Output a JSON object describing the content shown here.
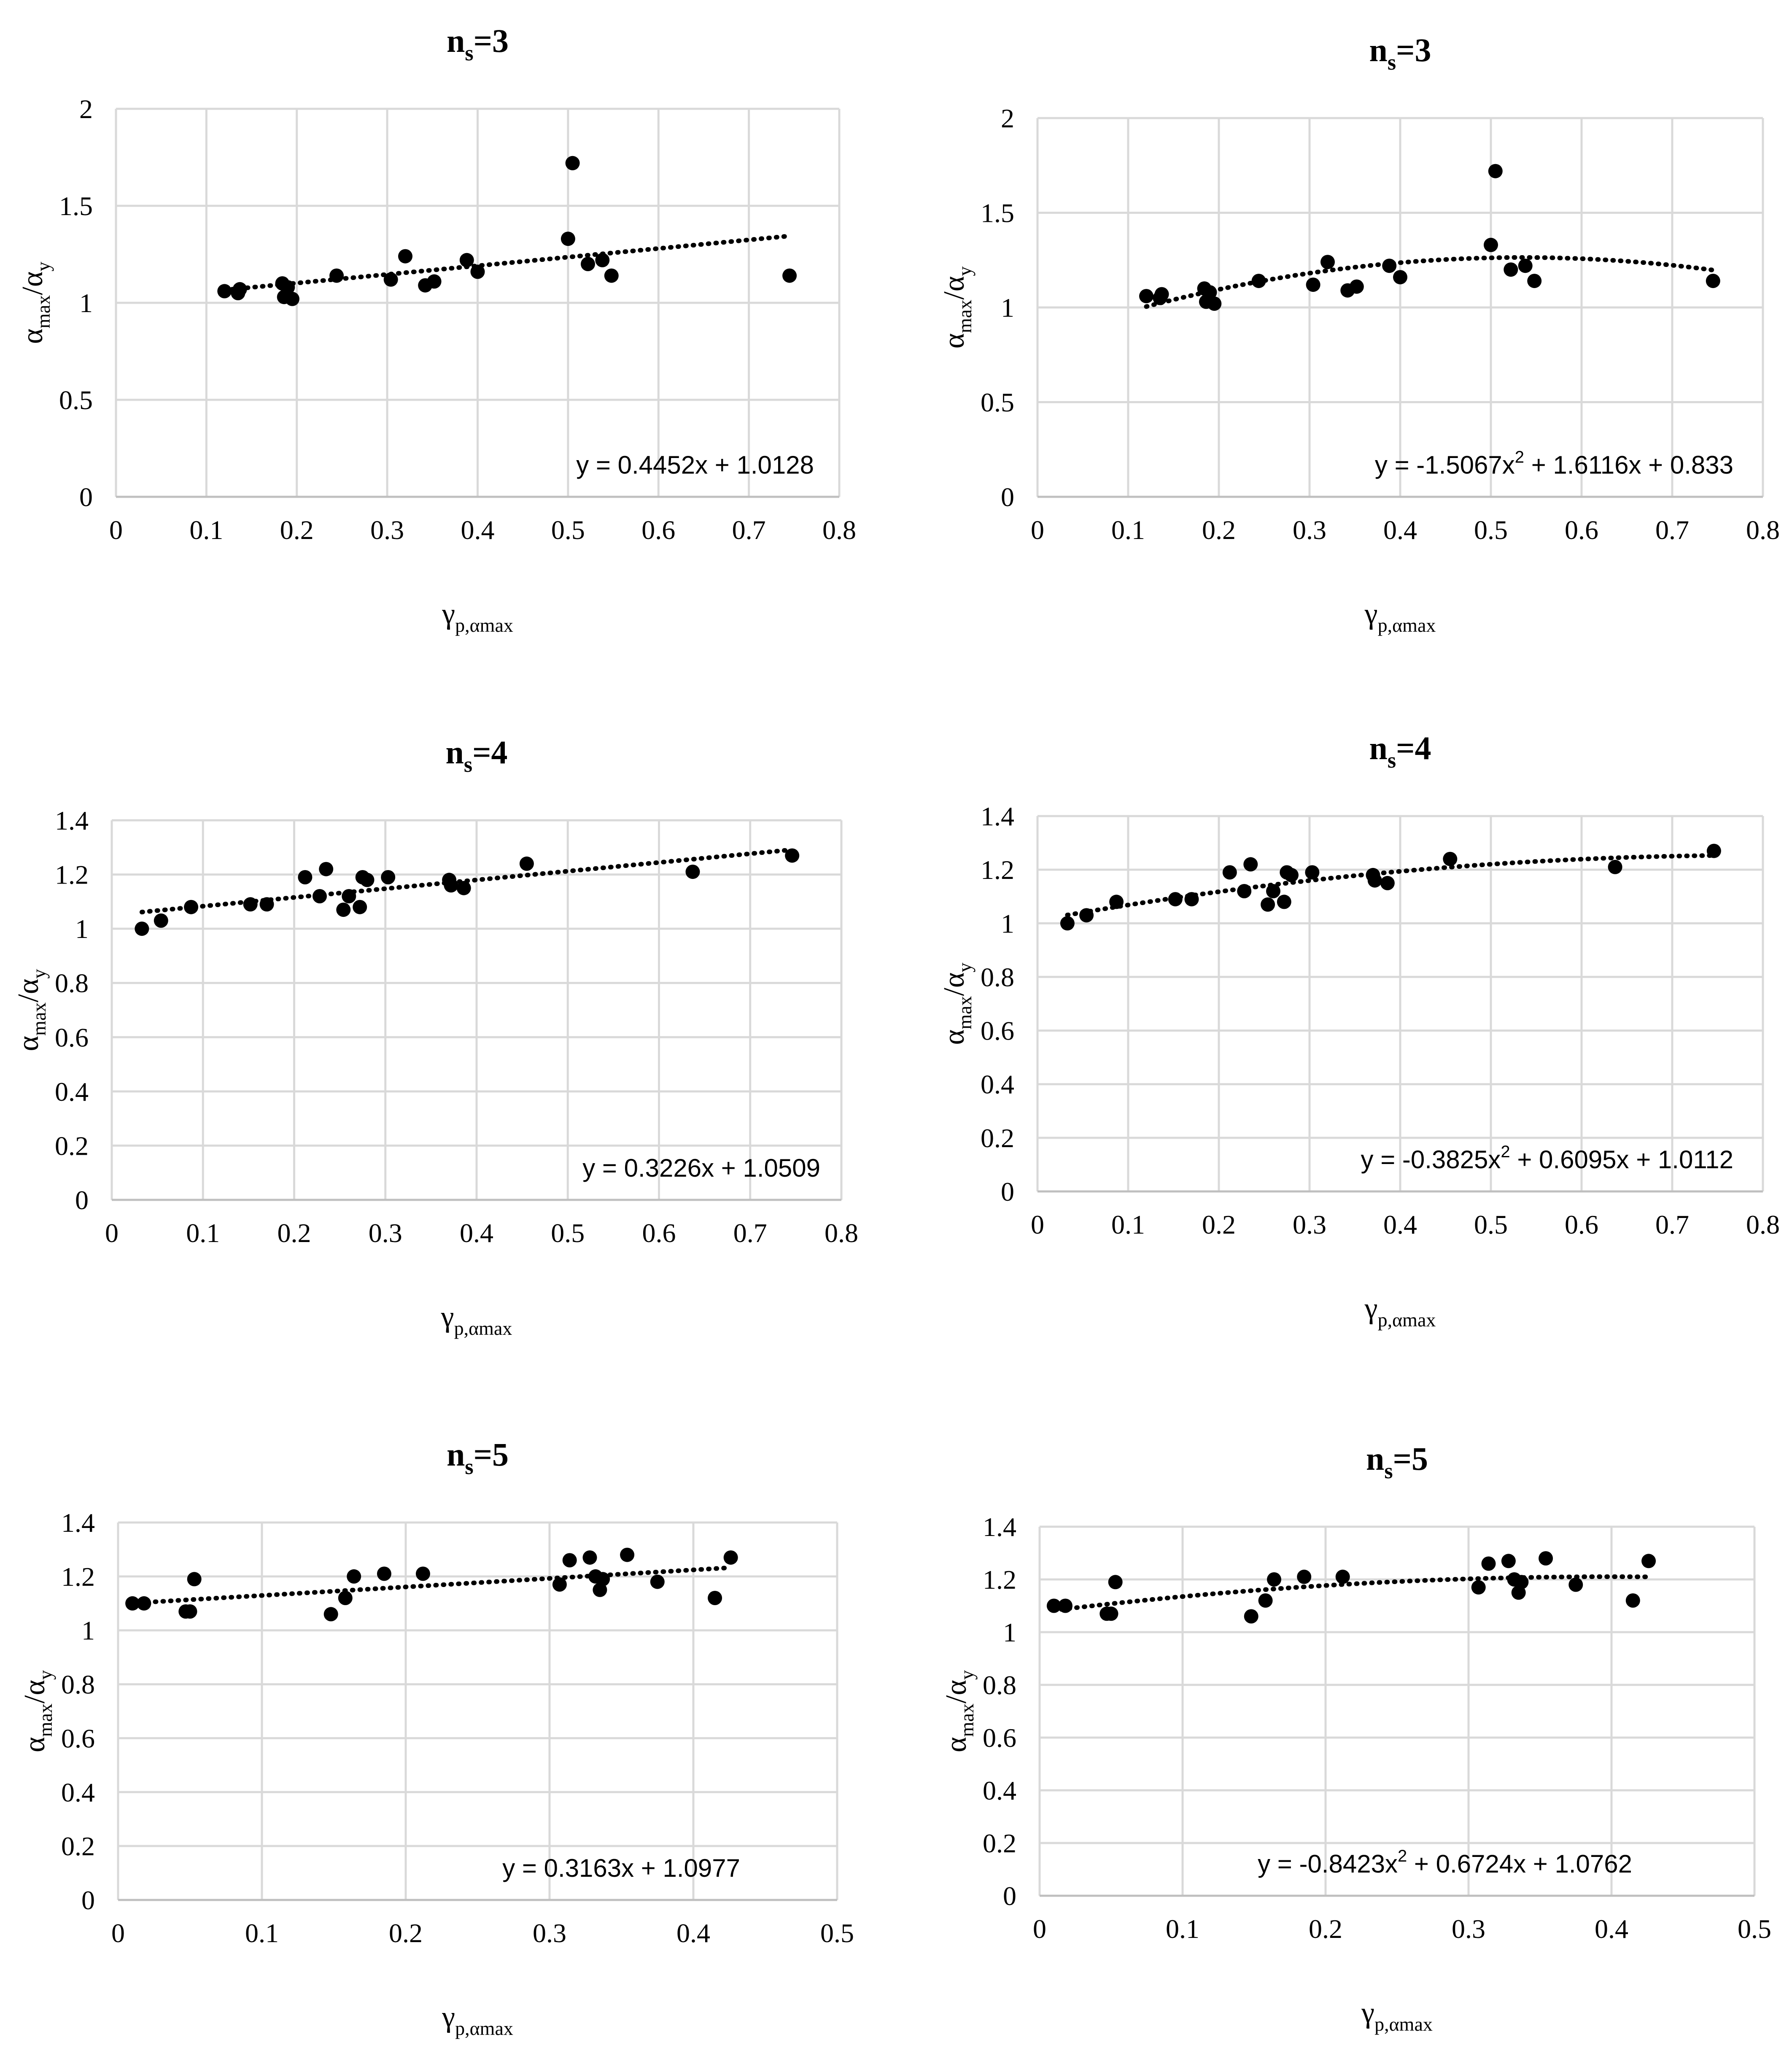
{
  "colors": {
    "grid": "#d9d9d9",
    "axis": "#bfbfbf",
    "marker": "#000000",
    "trend": "#000000",
    "background": "#ffffff"
  },
  "chart_data": [
    {
      "type": "scatter",
      "title": {
        "base": "n",
        "sub": "s",
        "rest": "=3"
      },
      "ylabel": {
        "a": "α",
        "a_sub": "max",
        "slash": "/",
        "b": "α",
        "b_sub": "y"
      },
      "xlabel": {
        "base": "γ",
        "sub": "p,αmax"
      },
      "xlim": [
        0,
        0.8
      ],
      "ylim": [
        0,
        2
      ],
      "xticks": [
        "0",
        "0.1",
        "0.2",
        "0.3",
        "0.4",
        "0.5",
        "0.6",
        "0.7",
        "0.8"
      ],
      "yticks": [
        "0",
        "0.5",
        "1",
        "1.5",
        "2"
      ],
      "trendline": {
        "kind": "linear",
        "coef": [
          0.4452,
          1.0128
        ],
        "x_range": [
          0.12,
          0.745
        ],
        "equation": "y = 0.4452x + 1.0128"
      },
      "x": [
        0.12,
        0.135,
        0.137,
        0.184,
        0.186,
        0.19,
        0.195,
        0.244,
        0.304,
        0.32,
        0.342,
        0.352,
        0.388,
        0.4,
        0.5,
        0.505,
        0.522,
        0.538,
        0.548,
        0.745
      ],
      "y": [
        1.06,
        1.05,
        1.07,
        1.1,
        1.03,
        1.08,
        1.02,
        1.14,
        1.12,
        1.24,
        1.09,
        1.11,
        1.22,
        1.16,
        1.33,
        1.72,
        1.2,
        1.22,
        1.14,
        1.14
      ]
    },
    {
      "type": "scatter",
      "title": {
        "base": "n",
        "sub": "s",
        "rest": "=3"
      },
      "ylabel": {
        "a": "α",
        "a_sub": "max",
        "slash": "/",
        "b": "α",
        "b_sub": "y"
      },
      "xlabel": {
        "base": "γ",
        "sub": "p,αmax"
      },
      "xlim": [
        0,
        0.8
      ],
      "ylim": [
        0,
        2
      ],
      "xticks": [
        "0",
        "0.1",
        "0.2",
        "0.3",
        "0.4",
        "0.5",
        "0.6",
        "0.7",
        "0.8"
      ],
      "yticks": [
        "0",
        "0.5",
        "1",
        "1.5",
        "2"
      ],
      "trendline": {
        "kind": "poly2",
        "coef": [
          -1.5067,
          1.6116,
          0.833
        ],
        "x_range": [
          0.12,
          0.745
        ],
        "equation": {
          "pre": "y = -1.5067x",
          "sup": "2",
          "post": " + 1.6116x + 0.833"
        }
      },
      "x": [
        0.12,
        0.135,
        0.137,
        0.184,
        0.186,
        0.19,
        0.195,
        0.244,
        0.304,
        0.32,
        0.342,
        0.352,
        0.388,
        0.4,
        0.5,
        0.505,
        0.522,
        0.538,
        0.548,
        0.745
      ],
      "y": [
        1.06,
        1.05,
        1.07,
        1.1,
        1.03,
        1.08,
        1.02,
        1.14,
        1.12,
        1.24,
        1.09,
        1.11,
        1.22,
        1.16,
        1.33,
        1.72,
        1.2,
        1.22,
        1.14,
        1.14
      ]
    },
    {
      "type": "scatter",
      "title": {
        "base": "n",
        "sub": "s",
        "rest": "=4"
      },
      "ylabel": {
        "a": "α",
        "a_sub": "max",
        "slash": "/",
        "b": "α",
        "b_sub": "y"
      },
      "xlabel": {
        "base": "γ",
        "sub": "p,αmax"
      },
      "xlim": [
        0,
        0.8
      ],
      "ylim": [
        0,
        1.4
      ],
      "xticks": [
        "0",
        "0.1",
        "0.2",
        "0.3",
        "0.4",
        "0.5",
        "0.6",
        "0.7",
        "0.8"
      ],
      "yticks": [
        "0",
        "0.2",
        "0.4",
        "0.6",
        "0.8",
        "1",
        "1.2",
        "1.4"
      ],
      "trendline": {
        "kind": "linear",
        "coef": [
          0.3226,
          1.0509
        ],
        "x_range": [
          0.033,
          0.745
        ],
        "equation": "y = 0.3226x + 1.0509"
      },
      "x": [
        0.033,
        0.054,
        0.087,
        0.152,
        0.17,
        0.212,
        0.228,
        0.235,
        0.254,
        0.26,
        0.272,
        0.275,
        0.28,
        0.303,
        0.37,
        0.372,
        0.386,
        0.455,
        0.637,
        0.746
      ],
      "y": [
        1.0,
        1.03,
        1.08,
        1.09,
        1.09,
        1.19,
        1.12,
        1.22,
        1.07,
        1.12,
        1.08,
        1.19,
        1.18,
        1.19,
        1.18,
        1.16,
        1.15,
        1.24,
        1.21,
        1.27
      ]
    },
    {
      "type": "scatter",
      "title": {
        "base": "n",
        "sub": "s",
        "rest": "=4"
      },
      "ylabel": {
        "a": "α",
        "a_sub": "max",
        "slash": "/",
        "b": "α",
        "b_sub": "y"
      },
      "xlabel": {
        "base": "γ",
        "sub": "p,αmax"
      },
      "xlim": [
        0,
        0.8
      ],
      "ylim": [
        0,
        1.4
      ],
      "xticks": [
        "0",
        "0.1",
        "0.2",
        "0.3",
        "0.4",
        "0.5",
        "0.6",
        "0.7",
        "0.8"
      ],
      "yticks": [
        "0",
        "0.2",
        "0.4",
        "0.6",
        "0.8",
        "1",
        "1.2",
        "1.4"
      ],
      "trendline": {
        "kind": "poly2",
        "coef": [
          -0.3825,
          0.6095,
          1.0112
        ],
        "x_range": [
          0.033,
          0.745
        ],
        "equation": {
          "pre": "y = -0.3825x",
          "sup": "2",
          "post": " + 0.6095x + 1.0112"
        }
      },
      "x": [
        0.033,
        0.054,
        0.087,
        0.152,
        0.17,
        0.212,
        0.228,
        0.235,
        0.254,
        0.26,
        0.272,
        0.275,
        0.28,
        0.303,
        0.37,
        0.372,
        0.386,
        0.455,
        0.637,
        0.746
      ],
      "y": [
        1.0,
        1.03,
        1.08,
        1.09,
        1.09,
        1.19,
        1.12,
        1.22,
        1.07,
        1.12,
        1.08,
        1.19,
        1.18,
        1.19,
        1.18,
        1.16,
        1.15,
        1.24,
        1.21,
        1.27
      ]
    },
    {
      "type": "scatter",
      "title": {
        "base": "n",
        "sub": "s",
        "rest": "=5"
      },
      "ylabel": {
        "a": "α",
        "a_sub": "max",
        "slash": "/",
        "b": "α",
        "b_sub": "y"
      },
      "xlabel": {
        "base": "γ",
        "sub": "p,αmax"
      },
      "xlim": [
        0,
        0.5
      ],
      "ylim": [
        0,
        1.4
      ],
      "xticks": [
        "0",
        "0.1",
        "0.2",
        "0.3",
        "0.4",
        "0.5"
      ],
      "yticks": [
        "0",
        "0.2",
        "0.4",
        "0.6",
        "0.8",
        "1",
        "1.2",
        "1.4"
      ],
      "trendline": {
        "kind": "linear",
        "coef": [
          0.3163,
          1.0977
        ],
        "x_range": [
          0.01,
          0.425
        ],
        "equation": "y = 0.3163x + 1.0977"
      },
      "x": [
        0.01,
        0.018,
        0.047,
        0.05,
        0.053,
        0.148,
        0.158,
        0.164,
        0.185,
        0.212,
        0.307,
        0.314,
        0.328,
        0.332,
        0.335,
        0.337,
        0.354,
        0.375,
        0.415,
        0.426
      ],
      "y": [
        1.1,
        1.1,
        1.07,
        1.07,
        1.19,
        1.06,
        1.12,
        1.2,
        1.21,
        1.21,
        1.17,
        1.26,
        1.27,
        1.2,
        1.15,
        1.19,
        1.28,
        1.18,
        1.12,
        1.27
      ]
    },
    {
      "type": "scatter",
      "title": {
        "base": "n",
        "sub": "s",
        "rest": "=5"
      },
      "ylabel": {
        "a": "α",
        "a_sub": "max",
        "slash": "/",
        "b": "α",
        "b_sub": "y"
      },
      "xlabel": {
        "base": "γ",
        "sub": "p,αmax"
      },
      "xlim": [
        0,
        0.5
      ],
      "ylim": [
        0,
        1.4
      ],
      "xticks": [
        "0",
        "0.1",
        "0.2",
        "0.3",
        "0.4",
        "0.5"
      ],
      "yticks": [
        "0",
        "0.2",
        "0.4",
        "0.6",
        "0.8",
        "1",
        "1.2",
        "1.4"
      ],
      "trendline": {
        "kind": "poly2",
        "coef": [
          -0.8423,
          0.6724,
          1.0762
        ],
        "x_range": [
          0.01,
          0.425
        ],
        "equation": {
          "pre": "y = -0.8423x",
          "sup": "2",
          "post": " + 0.6724x + 1.0762"
        }
      },
      "x": [
        0.01,
        0.018,
        0.047,
        0.05,
        0.053,
        0.148,
        0.158,
        0.164,
        0.185,
        0.212,
        0.307,
        0.314,
        0.328,
        0.332,
        0.335,
        0.337,
        0.354,
        0.375,
        0.415,
        0.426
      ],
      "y": [
        1.1,
        1.1,
        1.07,
        1.07,
        1.19,
        1.06,
        1.12,
        1.2,
        1.21,
        1.21,
        1.17,
        1.26,
        1.27,
        1.2,
        1.15,
        1.19,
        1.28,
        1.18,
        1.12,
        1.27
      ]
    }
  ]
}
